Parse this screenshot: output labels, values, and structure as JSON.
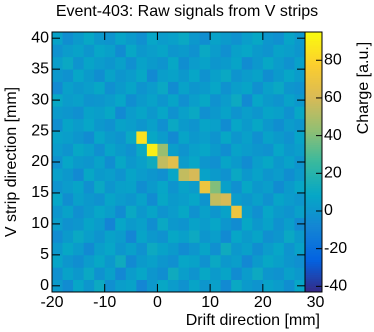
{
  "chart_data": {
    "type": "heatmap",
    "title": "Event-403: Raw signals from V strips",
    "x_label": "Drift direction [mm]",
    "y_label": "V strip direction [mm]",
    "z_label": "Charge [a.u.]",
    "xlim": [
      -20,
      28
    ],
    "ylim": [
      -1,
      41
    ],
    "zlim": [
      -43,
      95
    ],
    "xticks": [
      -20,
      -10,
      0,
      10,
      20,
      30
    ],
    "yticks": [
      0,
      5,
      10,
      15,
      20,
      25,
      30,
      35,
      40
    ],
    "zticks": [
      -40,
      -20,
      0,
      20,
      40,
      60,
      80
    ],
    "colormap": [
      "#352a87",
      "#0363e1",
      "#1485d4",
      "#06a7c6",
      "#38b99e",
      "#92bf73",
      "#d9ba56",
      "#fcce2e",
      "#f9fb0e"
    ],
    "xbins": [
      -20,
      -18,
      -16,
      -14,
      -12,
      -10,
      -8,
      -6,
      -4,
      -2,
      0,
      2,
      4,
      6,
      8,
      10,
      12,
      14,
      16,
      18,
      20,
      22,
      24,
      26,
      28
    ],
    "ybins": [
      -1,
      1,
      3,
      5,
      7,
      9,
      11,
      13,
      15,
      17,
      19,
      21,
      23,
      25,
      27,
      29,
      31,
      33,
      35,
      37,
      39,
      41
    ],
    "values": [
      [
        2,
        -5,
        8,
        0,
        11,
        -3,
        4,
        6,
        -8,
        1,
        9,
        3,
        -2,
        7,
        0,
        5,
        -6,
        10,
        2,
        -1,
        6,
        3,
        -4,
        8
      ],
      [
        -3,
        6,
        1,
        10,
        -2,
        5,
        -7,
        3,
        8,
        0,
        -4,
        12,
        4,
        -1,
        9,
        2,
        7,
        -5,
        3,
        11,
        0,
        -2,
        5,
        1
      ],
      [
        7,
        0,
        -4,
        3,
        9,
        1,
        12,
        -6,
        2,
        5,
        0,
        -3,
        8,
        6,
        -2,
        10,
        1,
        4,
        -7,
        2,
        9,
        5,
        0,
        -3
      ],
      [
        1,
        9,
        3,
        -6,
        4,
        8,
        0,
        5,
        -2,
        11,
        6,
        2,
        -5,
        0,
        7,
        -3,
        12,
        1,
        5,
        -4,
        3,
        8,
        -1,
        6
      ],
      [
        -5,
        2,
        10,
        4,
        -1,
        6,
        3,
        -8,
        7,
        1,
        -2,
        9,
        5,
        11,
        0,
        4,
        -6,
        8,
        2,
        7,
        -3,
        0,
        10,
        2
      ],
      [
        4,
        -2,
        0,
        7,
        3,
        -9,
        8,
        2,
        5,
        -4,
        10,
        1,
        -1,
        6,
        3,
        8,
        0,
        -5,
        9,
        1,
        6,
        -2,
        4,
        -6
      ],
      [
        0,
        6,
        -3,
        2,
        8,
        4,
        -5,
        10,
        1,
        7,
        -1,
        3,
        9,
        -2,
        5,
        0,
        6,
        70,
        4,
        -3,
        8,
        2,
        -1,
        5
      ],
      [
        8,
        -4,
        5,
        1,
        -2,
        7,
        3,
        0,
        6,
        -5,
        9,
        2,
        4,
        8,
        -1,
        55,
        60,
        3,
        0,
        5,
        -2,
        7,
        3,
        0
      ],
      [
        -1,
        3,
        7,
        -3,
        10,
        0,
        5,
        6,
        -4,
        2,
        8,
        -1,
        6,
        3,
        70,
        40,
        5,
        -3,
        9,
        1,
        4,
        -5,
        2,
        8
      ],
      [
        5,
        1,
        -6,
        9,
        2,
        4,
        -1,
        7,
        3,
        0,
        -3,
        8,
        55,
        60,
        6,
        2,
        -2,
        10,
        1,
        6,
        0,
        3,
        -4,
        2
      ],
      [
        -2,
        8,
        2,
        0,
        6,
        -4,
        9,
        1,
        5,
        12,
        55,
        65,
        3,
        8,
        0,
        -3,
        7,
        2,
        -5,
        4,
        9,
        1,
        6,
        -1
      ],
      [
        3,
        -1,
        9,
        5,
        -3,
        7,
        2,
        -2,
        10,
        90,
        45,
        4,
        -1,
        5,
        8,
        2,
        -4,
        6,
        3,
        0,
        -2,
        8,
        1,
        4
      ],
      [
        6,
        4,
        0,
        -5,
        8,
        2,
        -1,
        10,
        85,
        9,
        3,
        -6,
        7,
        1,
        4,
        -1,
        9,
        0,
        5,
        -3,
        6,
        2,
        -2,
        7
      ],
      [
        -4,
        7,
        3,
        8,
        1,
        -2,
        6,
        4,
        0,
        5,
        -3,
        10,
        2,
        -1,
        7,
        5,
        -5,
        8,
        2,
        9,
        1,
        -4,
        3,
        0
      ],
      [
        2,
        0,
        -3,
        6,
        4,
        9,
        -6,
        3,
        7,
        1,
        8,
        -2,
        5,
        10,
        -3,
        1,
        6,
        -1,
        4,
        0,
        7,
        5,
        -2,
        9
      ],
      [
        9,
        3,
        5,
        -1,
        0,
        3,
        8,
        -4,
        2,
        6,
        0,
        7,
        -3,
        4,
        9,
        -2,
        3,
        11,
        -6,
        8,
        2,
        -1,
        6,
        1
      ],
      [
        -6,
        5,
        1,
        4,
        9,
        -3,
        2,
        7,
        -1,
        3,
        10,
        -5,
        6,
        0,
        2,
        8,
        -2,
        4,
        7,
        -3,
        5,
        10,
        0,
        -2
      ],
      [
        1,
        -2,
        8,
        2,
        -4,
        6,
        0,
        3,
        9,
        -6,
        4,
        6,
        1,
        8,
        -2,
        5,
        10,
        -1,
        3,
        6,
        -4,
        2,
        8,
        3
      ],
      [
        4,
        10,
        -1,
        7,
        3,
        0,
        5,
        -3,
        6,
        2,
        -1,
        9,
        -4,
        3,
        6,
        0,
        2,
        7,
        -5,
        1,
        9,
        3,
        -2,
        5
      ],
      [
        -2,
        3,
        6,
        0,
        8,
        5,
        -5,
        9,
        1,
        4,
        7,
        0,
        2,
        -2,
        10,
        3,
        -3,
        5,
        8,
        2,
        -1,
        6,
        4,
        0
      ],
      [
        6,
        -4,
        2,
        9,
        1,
        -1,
        7,
        2,
        -3,
        8,
        3,
        5,
        10,
        1,
        -4,
        6,
        2,
        -2,
        4,
        9,
        0,
        -3,
        7,
        1
      ]
    ]
  }
}
